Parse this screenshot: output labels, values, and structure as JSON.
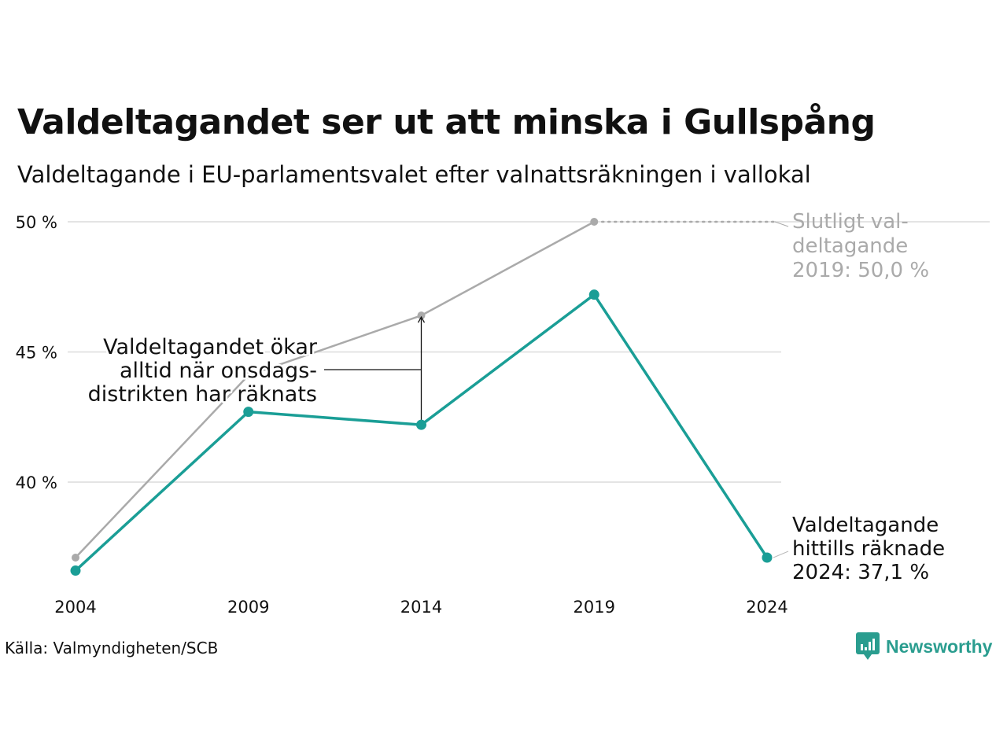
{
  "title": "Valdeltagandet ser ut att minska i Gullspång",
  "subtitle": "Valdeltagande i EU-parlamentsvalet efter valnattsräkningen i vallokal",
  "source": "Källa: Valmyndigheten/SCB",
  "brand": "Newsworthy",
  "colors": {
    "final": "#aaaaaa",
    "election_night": "#1a9e96",
    "grid": "#e4e4e4",
    "text": "#111111"
  },
  "annotations": {
    "final_2019": [
      "Slutligt val-",
      "deltagande",
      "2019: 50,0 %"
    ],
    "current_2024": [
      "Valdeltagande",
      "hittills räknade",
      "2024: 37,1 %"
    ],
    "wednesday": [
      "Valdeltagandet ökar",
      "alltid när onsdags-",
      "distrikten har räknats"
    ]
  },
  "chart_data": {
    "type": "line",
    "x": [
      2004,
      2009,
      2014,
      2019,
      2024
    ],
    "series": [
      {
        "key": "final",
        "values": [
          37.1,
          44.1,
          46.4,
          50.0,
          null
        ]
      },
      {
        "key": "election_night",
        "values": [
          36.6,
          42.7,
          42.2,
          47.2,
          37.1
        ]
      }
    ],
    "yticks": [
      40,
      45,
      50
    ],
    "ytick_labels": [
      "40 %",
      "45 %",
      "50 %"
    ],
    "ylim": [
      35.0,
      51.0
    ],
    "grid": true
  }
}
